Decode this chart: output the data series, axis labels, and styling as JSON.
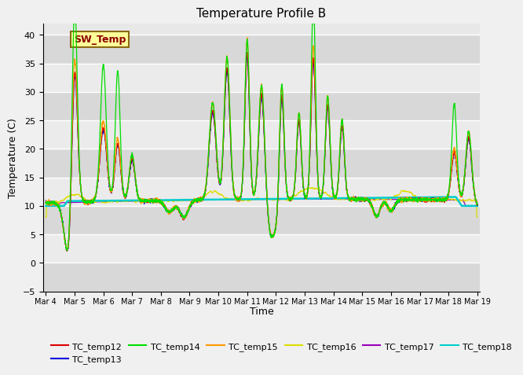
{
  "title": "Temperature Profile B",
  "xlabel": "Time",
  "ylabel": "Temperature (C)",
  "ylim": [
    -5,
    42
  ],
  "background_color": "#f0f0f0",
  "plot_bg_color": "#e8e8e8",
  "sw_temp_annotation": "SW_Temp",
  "series_colors": {
    "TC_temp12": "#dd0000",
    "TC_temp13": "#0000dd",
    "TC_temp14": "#00dd00",
    "TC_temp15": "#ff9900",
    "TC_temp16": "#dddd00",
    "TC_temp17": "#9900bb",
    "TC_temp18": "#00cccc"
  },
  "x_tick_labels": [
    "Mar 4",
    "Mar 5",
    "Mar 6",
    "Mar 7",
    "Mar 8",
    "Mar 9",
    "Mar 10",
    "Mar 11",
    "Mar 12",
    "Mar 13",
    "Mar 14",
    "Mar 15",
    "Mar 16",
    "Mar 17",
    "Mar 18",
    "Mar 19"
  ],
  "yticks": [
    -5,
    0,
    5,
    10,
    15,
    20,
    25,
    30,
    35,
    40
  ],
  "legend_order": [
    "TC_temp12",
    "TC_temp13",
    "TC_temp14",
    "TC_temp15",
    "TC_temp16",
    "TC_temp17",
    "TC_temp18"
  ]
}
